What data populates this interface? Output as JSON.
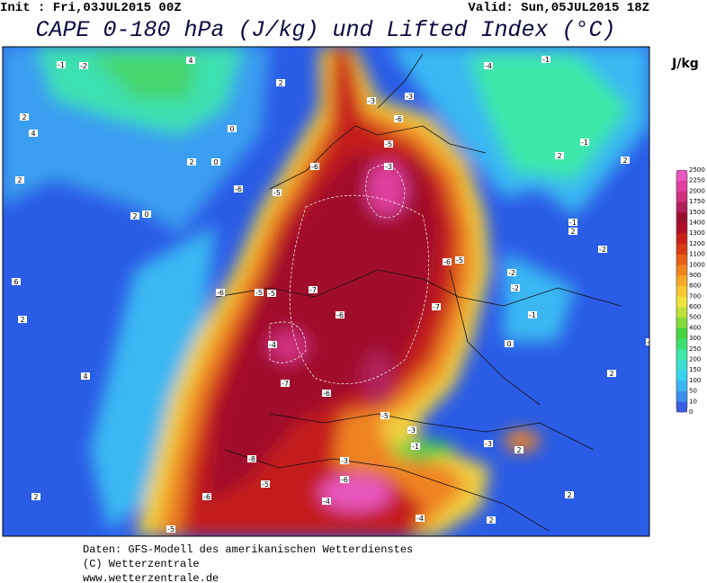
{
  "header": {
    "init": "Init : Fri,03JUL2015 00Z",
    "valid": "Valid: Sun,05JUL2015 18Z",
    "title": "CAPE 0-180 hPa (J/kg) und Lifted Index (°C)"
  },
  "colorbar": {
    "unit": "J/kg",
    "levels": [
      0,
      10,
      50,
      100,
      150,
      200,
      250,
      300,
      400,
      500,
      600,
      700,
      800,
      900,
      1000,
      1100,
      1200,
      1300,
      1400,
      1500,
      1750,
      2000,
      2250,
      2500
    ],
    "colors": [
      "#3a5ee8",
      "#3e8ef0",
      "#3bb4f4",
      "#38d2f0",
      "#3be0d0",
      "#3ee8a8",
      "#3ede6c",
      "#46d43c",
      "#82dc3a",
      "#bce23a",
      "#f0e43a",
      "#f8c830",
      "#f8a828",
      "#f08420",
      "#e86018",
      "#d83c14",
      "#c82018",
      "#b01028",
      "#981030",
      "#b0205a",
      "#d03080",
      "#e040a0",
      "#e858c0"
    ]
  },
  "contour_labels": [
    -1,
    -2,
    4,
    2,
    4,
    2,
    2,
    0,
    0,
    2,
    2,
    0,
    -6,
    -6,
    -5,
    -5,
    -3,
    -3,
    -3,
    -6,
    -6,
    -5,
    -7,
    -6,
    -4,
    -6,
    -5,
    -5,
    -7,
    -7,
    -6,
    -5,
    -3,
    -1,
    -3,
    2,
    0,
    -1,
    -2,
    -2,
    -1,
    2,
    -2,
    -1,
    2,
    2,
    -1,
    -4,
    -3,
    -6,
    -6,
    -5,
    -8,
    -4,
    -4,
    2,
    2,
    2,
    4,
    6,
    2,
    2,
    -5,
    -5
  ],
  "footer": [
    "Daten: GFS-Modell des amerikanischen Wetterdienstes",
    "(C) Wetterzentrale",
    "www.wetterzentrale.de"
  ]
}
